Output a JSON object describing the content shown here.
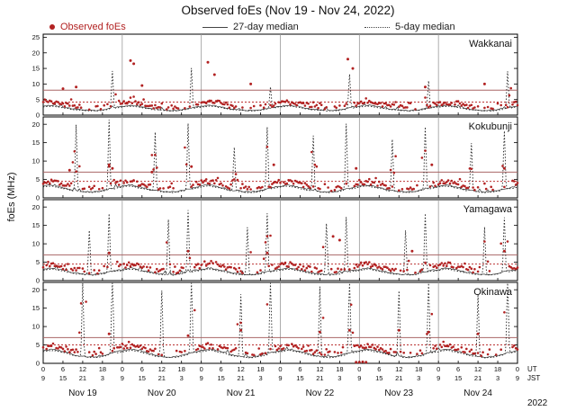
{
  "chart_data": {
    "type": "scatter",
    "title": "Observed foEs (Nov 19 - Nov 24, 2022)",
    "ylabel": "foEs (MHz)",
    "x_hours_range": [
      0,
      144
    ],
    "x_major_tick_hours": 6,
    "days": [
      "Nov 19",
      "Nov 20",
      "Nov 21",
      "Nov 22",
      "Nov 23",
      "Nov 24"
    ],
    "year_label": "2022",
    "time_axis": {
      "ut_label": "UT",
      "jst_label": "JST",
      "jst_offset": 9
    },
    "legend": [
      {
        "label": "Observed foEs",
        "type": "dot",
        "color": "#b22222"
      },
      {
        "label": "27-day median",
        "type": "solid-line",
        "color": "#444444"
      },
      {
        "label": "5-day median",
        "type": "dotted-line",
        "color": "#444444"
      }
    ],
    "colors": {
      "dot": "#b22222",
      "median_line": "#333333",
      "five_day_line": "#222222",
      "hline_solid": "#aa6666",
      "hline_dotted": "#bb3333",
      "grid": "#999999",
      "frame": "#000000"
    },
    "panels": [
      {
        "station": "Wakkanai",
        "ylim": [
          0,
          26
        ],
        "yticks": [
          0,
          5,
          10,
          15,
          20,
          25
        ],
        "red_solid_hline": 8.0,
        "red_dotted_hline": 4.2,
        "median_diurnal_ut": [
          2.8,
          3.0,
          3.1,
          3.1,
          3.0,
          2.8,
          2.6,
          2.4,
          2.2,
          2.0,
          1.9,
          1.8,
          1.7,
          1.6,
          1.5,
          1.5,
          1.5,
          1.6,
          1.7,
          1.9,
          2.1,
          2.3,
          2.5,
          2.7
        ],
        "five_day_spikes": [
          [
            21,
            12
          ],
          [
            45,
            13
          ],
          [
            69,
            7
          ],
          [
            93,
            11
          ],
          [
            117,
            9
          ],
          [
            141,
            12
          ]
        ],
        "observed_outliers": [
          [
            26.5,
            17.5
          ],
          [
            27.5,
            16.5
          ],
          [
            50,
            17
          ],
          [
            52,
            13
          ],
          [
            92.5,
            18
          ],
          [
            94,
            15
          ],
          [
            10,
            9
          ],
          [
            63,
            10
          ],
          [
            116,
            9
          ],
          [
            134,
            10
          ],
          [
            30,
            9.5
          ],
          [
            6,
            8.5
          ]
        ],
        "seed": 101
      },
      {
        "station": "Kokubunji",
        "ylim": [
          0,
          22
        ],
        "yticks": [
          0,
          5,
          10,
          15,
          20
        ],
        "red_solid_hline": 7.0,
        "red_dotted_hline": 4.5,
        "median_diurnal_ut": [
          3.2,
          3.4,
          3.5,
          3.4,
          3.2,
          3.0,
          2.8,
          2.6,
          2.3,
          2.1,
          2.0,
          1.9,
          1.8,
          1.7,
          1.6,
          1.6,
          1.7,
          1.8,
          2.0,
          2.2,
          2.4,
          2.6,
          2.8,
          3.0
        ],
        "five_day_spikes": [
          [
            10,
            18
          ],
          [
            20,
            19
          ],
          [
            34,
            16
          ],
          [
            44,
            18
          ],
          [
            58,
            12
          ],
          [
            68,
            17
          ],
          [
            82,
            15
          ],
          [
            92,
            18
          ],
          [
            106,
            14
          ],
          [
            116,
            17
          ],
          [
            130,
            13
          ],
          [
            140,
            16
          ]
        ],
        "observed_outliers": [
          [
            20,
            9
          ],
          [
            21,
            8
          ],
          [
            45,
            8.5
          ],
          [
            70,
            9
          ],
          [
            95,
            8
          ],
          [
            118,
            9
          ],
          [
            140,
            8
          ],
          [
            8,
            7.5
          ],
          [
            33,
            7
          ]
        ],
        "seed": 202
      },
      {
        "station": "Yamagawa",
        "ylim": [
          0,
          22
        ],
        "yticks": [
          0,
          5,
          10,
          15,
          20
        ],
        "red_solid_hline": 7.0,
        "red_dotted_hline": 4.5,
        "median_diurnal_ut": [
          3.0,
          3.2,
          3.4,
          3.4,
          3.2,
          3.0,
          2.8,
          2.6,
          2.4,
          2.2,
          2.0,
          1.9,
          1.8,
          1.7,
          1.7,
          1.6,
          1.7,
          1.8,
          2.0,
          2.2,
          2.4,
          2.6,
          2.8,
          2.9
        ],
        "five_day_spikes": [
          [
            14,
            12
          ],
          [
            20,
            16
          ],
          [
            38,
            15
          ],
          [
            44,
            17
          ],
          [
            62,
            13
          ],
          [
            68,
            16
          ],
          [
            86,
            14
          ],
          [
            92,
            15
          ],
          [
            110,
            12
          ],
          [
            116,
            16
          ],
          [
            134,
            13
          ],
          [
            140,
            15
          ]
        ],
        "observed_outliers": [
          [
            88,
            12
          ],
          [
            90,
            11
          ],
          [
            112,
            8
          ],
          [
            20,
            7.5
          ],
          [
            44,
            8
          ],
          [
            68,
            7.5
          ],
          [
            140,
            8
          ]
        ],
        "seed": 303
      },
      {
        "station": "Okinawa",
        "ylim": [
          0,
          22
        ],
        "yticks": [
          0,
          5,
          10,
          15,
          20
        ],
        "red_solid_hline": 7.0,
        "red_dotted_hline": 5.0,
        "median_diurnal_ut": [
          3.4,
          3.6,
          3.8,
          3.8,
          3.6,
          3.4,
          3.2,
          3.0,
          2.7,
          2.4,
          2.2,
          2.0,
          1.9,
          1.8,
          1.7,
          1.7,
          1.8,
          1.9,
          2.1,
          2.3,
          2.6,
          2.9,
          3.1,
          3.3
        ],
        "five_day_spikes": [
          [
            12,
            20
          ],
          [
            21,
            22
          ],
          [
            36,
            18
          ],
          [
            45,
            21
          ],
          [
            60,
            17
          ],
          [
            69,
            20
          ],
          [
            84,
            19
          ],
          [
            93,
            21
          ],
          [
            108,
            18
          ],
          [
            117,
            20
          ],
          [
            132,
            17
          ],
          [
            141,
            21
          ]
        ],
        "observed_outliers": [
          [
            60,
            9
          ],
          [
            84,
            8.5
          ],
          [
            108,
            9
          ],
          [
            132,
            8
          ],
          [
            20,
            8
          ],
          [
            44,
            7.5
          ],
          [
            93,
            9
          ],
          [
            117,
            8.5
          ],
          [
            95,
            0.3
          ],
          [
            96,
            0.3
          ],
          [
            97,
            0.4
          ],
          [
            98,
            0.3
          ]
        ],
        "seed": 404
      }
    ]
  }
}
